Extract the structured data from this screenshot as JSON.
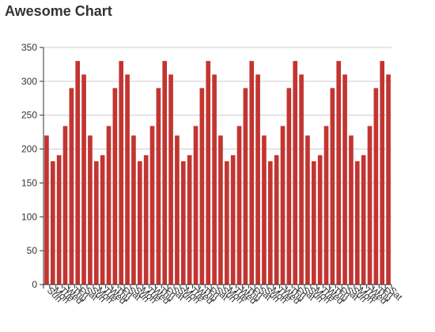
{
  "chart_data": {
    "type": "bar",
    "title": "Awesome Chart",
    "ylim": [
      0,
      350
    ],
    "y_ticks": [
      0,
      50,
      100,
      150,
      200,
      250,
      300,
      350
    ],
    "grid": true,
    "bar_color": "#c23531",
    "categories": [
      "Sun",
      "Mon",
      "Tue",
      "Wed",
      "Thu",
      "Fri",
      "Sat",
      "Sun",
      "Mon",
      "Tue",
      "Wed",
      "Thu",
      "Fri",
      "Sat",
      "Sun",
      "Mon",
      "Tue",
      "Wed",
      "Thu",
      "Fri",
      "Sat",
      "Sun",
      "Mon",
      "Tue",
      "Wed",
      "Thu",
      "Fri",
      "Sat",
      "Sun",
      "Mon",
      "Tue",
      "Wed",
      "Thu",
      "Fri",
      "Sat",
      "Sun",
      "Mon",
      "Tue",
      "Wed",
      "Thu",
      "Fri",
      "Sat",
      "Sun",
      "Mon",
      "Tue",
      "Wed",
      "Thu",
      "Fri",
      "Sat",
      "Sun",
      "Mon",
      "Tue",
      "Wed",
      "Thu",
      "Fri",
      "Sat"
    ],
    "values": [
      220,
      182,
      191,
      234,
      290,
      330,
      310,
      220,
      182,
      191,
      234,
      290,
      330,
      310,
      220,
      182,
      191,
      234,
      290,
      330,
      310,
      220,
      182,
      191,
      234,
      290,
      330,
      310,
      220,
      182,
      191,
      234,
      290,
      330,
      310,
      220,
      182,
      191,
      234,
      290,
      330,
      310,
      220,
      182,
      191,
      234,
      290,
      330,
      310,
      220,
      182,
      191,
      234,
      290,
      330,
      310
    ]
  }
}
